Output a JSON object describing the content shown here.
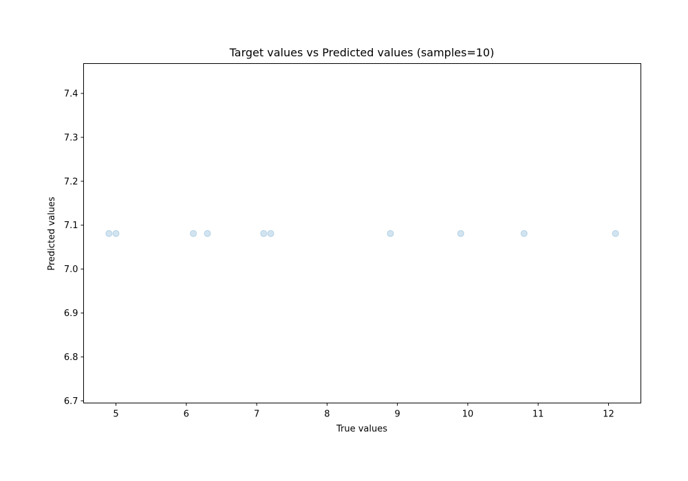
{
  "chart_data": {
    "type": "scatter",
    "title": "Target values vs Predicted values (samples=10)",
    "xlabel": "True values",
    "ylabel": "Predicted values",
    "xlim": [
      4.54,
      12.46
    ],
    "ylim": [
      6.695,
      7.468
    ],
    "xticks": [
      5,
      6,
      7,
      8,
      9,
      10,
      11,
      12
    ],
    "yticks": [
      6.7,
      6.8,
      6.9,
      7.0,
      7.1,
      7.2,
      7.3,
      7.4
    ],
    "xtick_labels": [
      "5",
      "6",
      "7",
      "8",
      "9",
      "10",
      "11",
      "12"
    ],
    "ytick_labels": [
      "6.7",
      "6.8",
      "6.9",
      "7.0",
      "7.1",
      "7.2",
      "7.3",
      "7.4"
    ],
    "grid": false,
    "marker_color": "#1f77b4",
    "points": [
      {
        "x": 4.9,
        "y": 7.081
      },
      {
        "x": 5.0,
        "y": 7.081
      },
      {
        "x": 6.1,
        "y": 7.081
      },
      {
        "x": 6.3,
        "y": 7.081
      },
      {
        "x": 7.1,
        "y": 7.081
      },
      {
        "x": 7.2,
        "y": 7.081
      },
      {
        "x": 8.9,
        "y": 7.081
      },
      {
        "x": 9.9,
        "y": 7.081
      },
      {
        "x": 10.8,
        "y": 7.081
      },
      {
        "x": 12.1,
        "y": 7.081
      }
    ]
  }
}
